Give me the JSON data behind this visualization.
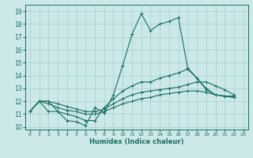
{
  "xlabel": "Humidex (Indice chaleur)",
  "xlim": [
    -0.5,
    23.5
  ],
  "ylim": [
    9.8,
    19.5
  ],
  "yticks": [
    10,
    11,
    12,
    13,
    14,
    15,
    16,
    17,
    18,
    19
  ],
  "xticks": [
    0,
    1,
    2,
    3,
    4,
    5,
    6,
    7,
    8,
    9,
    10,
    11,
    12,
    13,
    14,
    15,
    16,
    17,
    18,
    19,
    20,
    21,
    22,
    23
  ],
  "bg_color": "#cce8e8",
  "grid_color": "#aad4d4",
  "line_color": "#1a6e64",
  "line1_x": [
    0,
    1,
    2,
    3,
    4,
    5,
    6,
    7,
    8,
    9,
    10,
    11,
    12,
    13,
    14,
    15,
    16,
    17,
    18,
    19,
    20,
    21,
    22
  ],
  "line1_y": [
    11.2,
    12.0,
    12.0,
    11.2,
    10.5,
    10.4,
    10.1,
    11.5,
    11.1,
    12.5,
    14.8,
    17.2,
    18.8,
    17.5,
    18.0,
    18.2,
    18.5,
    14.6,
    13.8,
    13.0,
    12.5,
    12.4,
    12.4
  ],
  "line2_x": [
    0,
    1,
    2,
    3,
    4,
    5,
    6,
    7,
    8,
    9,
    10,
    11,
    12,
    13,
    14,
    15,
    16,
    17,
    18,
    19,
    20,
    21,
    22
  ],
  "line2_y": [
    11.2,
    12.0,
    11.2,
    11.2,
    11.0,
    10.8,
    10.5,
    10.5,
    11.5,
    12.2,
    12.8,
    13.2,
    13.5,
    13.5,
    13.8,
    14.0,
    14.2,
    14.5,
    13.8,
    12.9,
    12.5,
    12.4,
    12.3
  ],
  "line3_x": [
    0,
    1,
    2,
    3,
    4,
    5,
    6,
    7,
    8,
    9,
    10,
    11,
    12,
    13,
    14,
    15,
    16,
    17,
    18,
    19,
    20,
    21,
    22
  ],
  "line3_y": [
    11.2,
    12.0,
    11.8,
    11.5,
    11.3,
    11.2,
    11.0,
    11.0,
    11.2,
    11.5,
    11.8,
    12.0,
    12.2,
    12.3,
    12.5,
    12.6,
    12.7,
    12.8,
    12.8,
    12.7,
    12.5,
    12.4,
    12.3
  ],
  "line4_x": [
    0,
    1,
    2,
    3,
    4,
    5,
    6,
    7,
    8,
    9,
    10,
    11,
    12,
    13,
    14,
    15,
    16,
    17,
    18,
    19,
    20,
    21,
    22
  ],
  "line4_y": [
    11.2,
    12.0,
    12.0,
    11.8,
    11.6,
    11.4,
    11.2,
    11.2,
    11.4,
    11.8,
    12.2,
    12.5,
    12.7,
    12.8,
    12.9,
    13.0,
    13.1,
    13.3,
    13.5,
    13.5,
    13.2,
    12.9,
    12.5
  ]
}
